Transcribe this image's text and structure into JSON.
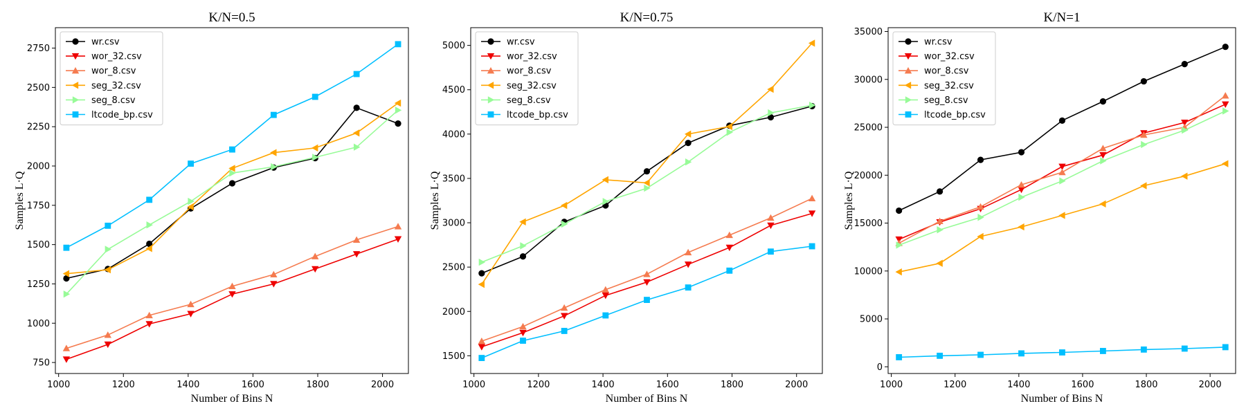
{
  "chart_data": [
    {
      "type": "line",
      "title": "K/N=0.5",
      "xlabel": "Number of Bins N",
      "ylabel": "Samples L·Q",
      "xlim": [
        990,
        2080
      ],
      "ylim": [
        680,
        2880
      ],
      "xticks": [
        1000,
        1200,
        1400,
        1600,
        1800,
        2000
      ],
      "yticks": [
        750,
        1000,
        1250,
        1500,
        1750,
        2000,
        2250,
        2500,
        2750
      ],
      "legend": "top-left",
      "grid": false,
      "x": [
        1024,
        1152,
        1280,
        1408,
        1536,
        1664,
        1792,
        1920,
        2048
      ],
      "series": [
        {
          "name": "wr.csv",
          "color": "#000000",
          "marker": "circle",
          "values": [
            1285,
            1345,
            1505,
            1730,
            1890,
            1990,
            2050,
            2370,
            2270
          ]
        },
        {
          "name": "wor_32.csv",
          "color": "#ee0000",
          "marker": "triangle-down",
          "values": [
            770,
            865,
            995,
            1060,
            1185,
            1250,
            1345,
            1440,
            1535
          ]
        },
        {
          "name": "wor_8.csv",
          "color": "#f57b4f",
          "marker": "triangle-up",
          "values": [
            840,
            925,
            1050,
            1120,
            1235,
            1310,
            1425,
            1530,
            1615
          ]
        },
        {
          "name": "seg_32.csv",
          "color": "#ffa500",
          "marker": "triangle-left",
          "values": [
            1315,
            1340,
            1475,
            1740,
            1985,
            2085,
            2115,
            2210,
            2400
          ]
        },
        {
          "name": "seg_8.csv",
          "color": "#98fb98",
          "marker": "triangle-right",
          "values": [
            1185,
            1470,
            1625,
            1775,
            1955,
            1995,
            2055,
            2120,
            2355
          ]
        },
        {
          "name": "ltcode_bp.csv",
          "color": "#00bfff",
          "marker": "square",
          "values": [
            1480,
            1620,
            1785,
            2015,
            2105,
            2325,
            2440,
            2585,
            2775
          ]
        }
      ]
    },
    {
      "type": "line",
      "title": "K/N=0.75",
      "xlabel": "Number of Bins N",
      "ylabel": "Samples L·Q",
      "xlim": [
        990,
        2080
      ],
      "ylim": [
        1300,
        5200
      ],
      "xticks": [
        1000,
        1200,
        1400,
        1600,
        1800,
        2000
      ],
      "yticks": [
        1500,
        2000,
        2500,
        3000,
        3500,
        4000,
        4500,
        5000
      ],
      "legend": "top-left",
      "grid": false,
      "x": [
        1024,
        1152,
        1280,
        1408,
        1536,
        1664,
        1792,
        1920,
        2048
      ],
      "series": [
        {
          "name": "wr.csv",
          "color": "#000000",
          "marker": "circle",
          "values": [
            2430,
            2620,
            3010,
            3195,
            3580,
            3900,
            4095,
            4190,
            4315
          ]
        },
        {
          "name": "wor_32.csv",
          "color": "#ee0000",
          "marker": "triangle-down",
          "values": [
            1600,
            1760,
            1950,
            2180,
            2330,
            2530,
            2720,
            2970,
            3105
          ]
        },
        {
          "name": "wor_8.csv",
          "color": "#f57b4f",
          "marker": "triangle-up",
          "values": [
            1665,
            1830,
            2040,
            2245,
            2420,
            2665,
            2860,
            3055,
            3275
          ]
        },
        {
          "name": "seg_32.csv",
          "color": "#ffa500",
          "marker": "triangle-left",
          "values": [
            2305,
            3010,
            3195,
            3485,
            3450,
            4000,
            4085,
            4505,
            5025
          ]
        },
        {
          "name": "seg_8.csv",
          "color": "#98fb98",
          "marker": "triangle-right",
          "values": [
            2555,
            2740,
            2985,
            3240,
            3390,
            3685,
            4020,
            4240,
            4325
          ]
        },
        {
          "name": "ltcode_bp.csv",
          "color": "#00bfff",
          "marker": "square",
          "values": [
            1475,
            1670,
            1780,
            1955,
            2130,
            2270,
            2460,
            2675,
            2735
          ]
        }
      ]
    },
    {
      "type": "line",
      "title": "K/N=1",
      "xlabel": "Number of Bins N",
      "ylabel": "Samples L·Q",
      "xlim": [
        990,
        2080
      ],
      "ylim": [
        -700,
        35400
      ],
      "xticks": [
        1000,
        1200,
        1400,
        1600,
        1800,
        2000
      ],
      "yticks": [
        0,
        5000,
        10000,
        15000,
        20000,
        25000,
        30000,
        35000
      ],
      "legend": "top-left",
      "grid": false,
      "x": [
        1024,
        1152,
        1280,
        1408,
        1536,
        1664,
        1792,
        1920,
        2048
      ],
      "series": [
        {
          "name": "wr.csv",
          "color": "#000000",
          "marker": "circle",
          "values": [
            16300,
            18300,
            21600,
            22400,
            25700,
            27700,
            29800,
            31600,
            33400
          ]
        },
        {
          "name": "wor_32.csv",
          "color": "#ee0000",
          "marker": "triangle-down",
          "values": [
            13300,
            15100,
            16500,
            18500,
            20900,
            22100,
            24400,
            25500,
            27400
          ]
        },
        {
          "name": "wor_8.csv",
          "color": "#f57b4f",
          "marker": "triangle-up",
          "values": [
            12900,
            15200,
            16700,
            19000,
            20300,
            22800,
            24200,
            25000,
            28300
          ]
        },
        {
          "name": "seg_32.csv",
          "color": "#ffa500",
          "marker": "triangle-left",
          "values": [
            9900,
            10800,
            13600,
            14600,
            15800,
            17000,
            18900,
            19900,
            21200
          ]
        },
        {
          "name": "seg_8.csv",
          "color": "#98fb98",
          "marker": "triangle-right",
          "values": [
            12700,
            14300,
            15600,
            17700,
            19400,
            21500,
            23200,
            24700,
            26700
          ]
        },
        {
          "name": "ltcode_bp.csv",
          "color": "#00bfff",
          "marker": "square",
          "values": [
            1000,
            1150,
            1250,
            1400,
            1500,
            1650,
            1800,
            1900,
            2050
          ]
        }
      ]
    }
  ]
}
